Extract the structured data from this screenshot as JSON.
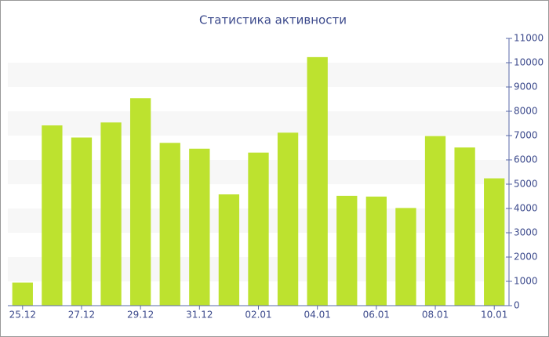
{
  "chart_data": {
    "type": "bar",
    "title": "Статистика активности",
    "categories": [
      "25.12",
      null,
      "27.12",
      null,
      "29.12",
      null,
      "31.12",
      null,
      "02.01",
      null,
      "04.01",
      null,
      "06.01",
      null,
      "08.01",
      null,
      "10.01"
    ],
    "values": [
      950,
      7420,
      6920,
      7540,
      8540,
      6700,
      6460,
      4580,
      6300,
      7120,
      10230,
      4520,
      4490,
      4020,
      6980,
      6510,
      5240
    ],
    "color": "#bde22f",
    "ylim": [
      0,
      11000
    ],
    "yticks": [
      0,
      1000,
      2000,
      3000,
      4000,
      5000,
      6000,
      7000,
      8000,
      9000,
      10000,
      11000
    ],
    "grid": true
  }
}
